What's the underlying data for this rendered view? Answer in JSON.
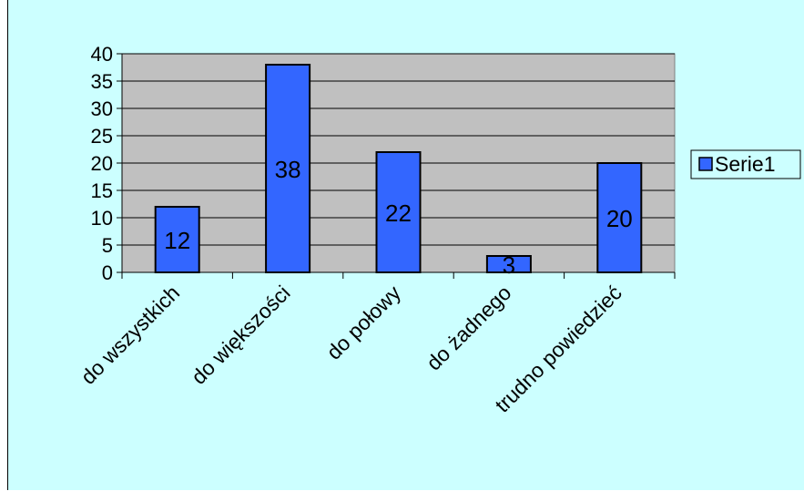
{
  "chart_data": {
    "type": "bar",
    "categories": [
      "do wszystkich",
      "do większości",
      "do połowy",
      "do żadnego",
      "trudno powiedzieć"
    ],
    "series": [
      {
        "name": "Serie1",
        "values": [
          12,
          38,
          22,
          3,
          20
        ]
      }
    ],
    "ylim": [
      0,
      40
    ],
    "yticks": [
      0,
      5,
      10,
      15,
      20,
      25,
      30,
      35,
      40
    ],
    "grid": true,
    "legend": "right",
    "data_labels": true
  },
  "colors": {
    "background": "#ccffff",
    "plot_area": "#c0c0c0",
    "bar": "#3366ff",
    "bar_border": "#000000",
    "gridline": "#000000"
  }
}
